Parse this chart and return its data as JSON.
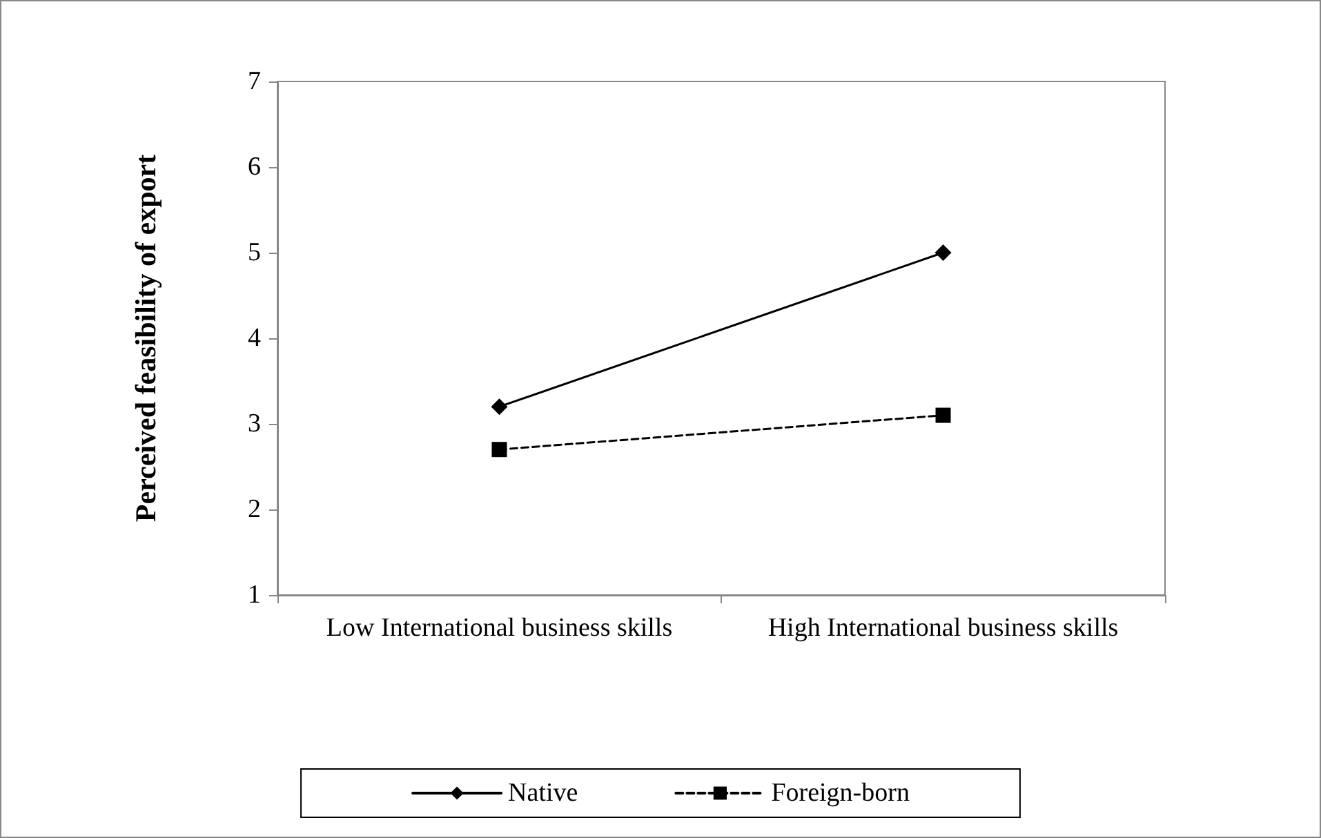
{
  "chart_data": {
    "type": "line",
    "ylabel": "Perceived feasibility of export",
    "categories": [
      "Low International business skills",
      "High International business skills"
    ],
    "series": [
      {
        "name": "Native",
        "color": "#000000",
        "values": [
          3.2,
          5.0
        ],
        "marker": "diamond",
        "line_style": "solid"
      },
      {
        "name": "Foreign-born",
        "color": "#000000",
        "values": [
          2.7,
          3.1
        ],
        "marker": "square",
        "line_style": "dashed"
      }
    ],
    "ylim": [
      1,
      7
    ],
    "yticks": [
      1,
      2,
      3,
      4,
      5,
      6,
      7
    ],
    "grid": false,
    "legend": "bottom"
  }
}
